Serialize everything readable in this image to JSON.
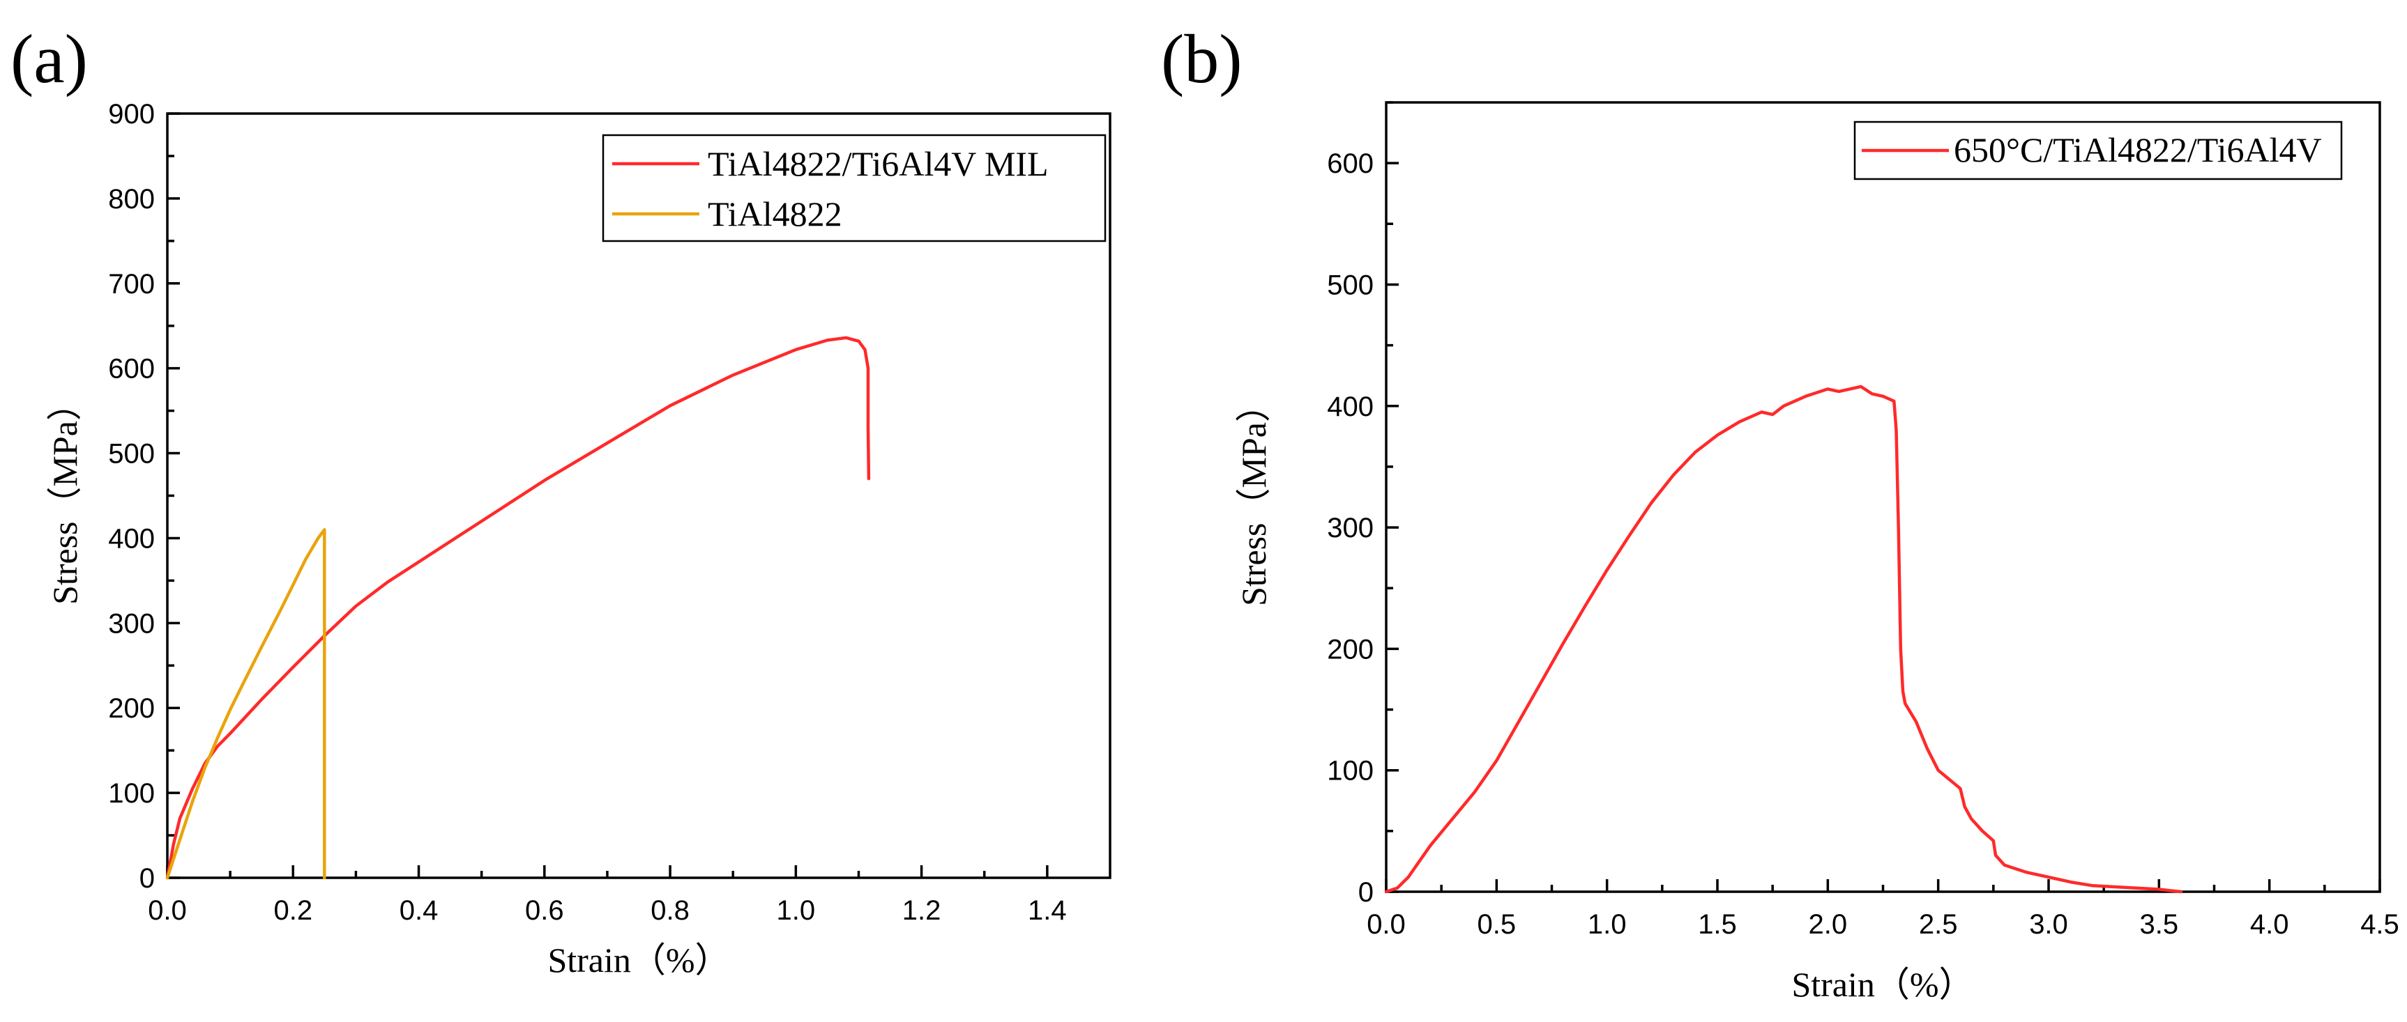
{
  "chart_data": [
    {
      "type": "line",
      "panel_label": "(a)",
      "xlabel": "Strain（%）",
      "ylabel": "Stress（MPa）",
      "xlim": [
        0.0,
        1.5
      ],
      "ylim": [
        0,
        900
      ],
      "x_ticks": [
        0.0,
        0.2,
        0.4,
        0.6,
        0.8,
        1.0,
        1.2,
        1.4
      ],
      "x_tick_labels": [
        "0.0",
        "0.2",
        "0.4",
        "0.6",
        "0.8",
        "1.0",
        "1.2",
        "1.4"
      ],
      "y_ticks": [
        0,
        100,
        200,
        300,
        400,
        500,
        600,
        700,
        800,
        900
      ],
      "y_tick_labels": [
        "0",
        "100",
        "200",
        "300",
        "400",
        "500",
        "600",
        "700",
        "800",
        "900"
      ],
      "legend_position": "top-right",
      "series": [
        {
          "name": "TiAl4822/Ti6Al4V MIL",
          "color": "#ff2a2a",
          "x": [
            0.0,
            0.01,
            0.02,
            0.04,
            0.06,
            0.08,
            0.1,
            0.15,
            0.2,
            0.25,
            0.3,
            0.35,
            0.4,
            0.5,
            0.6,
            0.7,
            0.8,
            0.9,
            1.0,
            1.05,
            1.08,
            1.1,
            1.11,
            1.115,
            1.115,
            1.116
          ],
          "y": [
            0,
            40,
            70,
            105,
            135,
            155,
            170,
            210,
            248,
            285,
            320,
            348,
            372,
            420,
            468,
            512,
            556,
            592,
            622,
            633,
            636,
            632,
            622,
            600,
            530,
            470
          ]
        },
        {
          "name": "TiAl4822",
          "color": "#e8a40c",
          "x": [
            0.0,
            0.02,
            0.04,
            0.06,
            0.08,
            0.1,
            0.12,
            0.15,
            0.18,
            0.2,
            0.22,
            0.24,
            0.25,
            0.25,
            0.25
          ],
          "y": [
            0,
            45,
            90,
            130,
            165,
            198,
            228,
            272,
            315,
            345,
            375,
            400,
            410,
            200,
            0
          ]
        }
      ]
    },
    {
      "type": "line",
      "panel_label": "(b)",
      "xlabel": "Strain（%）",
      "ylabel": "Stress（MPa）",
      "xlim": [
        0.0,
        4.5
      ],
      "ylim": [
        0,
        650
      ],
      "x_ticks": [
        0.0,
        0.5,
        1.0,
        1.5,
        2.0,
        2.5,
        3.0,
        3.5,
        4.0,
        4.5
      ],
      "x_tick_labels": [
        "0.0",
        "0.5",
        "1.0",
        "1.5",
        "2.0",
        "2.5",
        "3.0",
        "3.5",
        "4.0",
        "4.5"
      ],
      "y_ticks": [
        0,
        100,
        200,
        300,
        400,
        500,
        600
      ],
      "y_tick_labels": [
        "0",
        "100",
        "200",
        "300",
        "400",
        "500",
        "600"
      ],
      "legend_position": "top-right",
      "series": [
        {
          "name": "650°C/TiAl4822/Ti6Al4V",
          "color": "#ff2a2a",
          "x": [
            0.0,
            0.05,
            0.1,
            0.15,
            0.2,
            0.3,
            0.4,
            0.5,
            0.6,
            0.7,
            0.8,
            0.9,
            1.0,
            1.1,
            1.2,
            1.3,
            1.4,
            1.5,
            1.6,
            1.7,
            1.75,
            1.8,
            1.9,
            2.0,
            2.05,
            2.1,
            2.15,
            2.2,
            2.25,
            2.3,
            2.31,
            2.32,
            2.33,
            2.34,
            2.35,
            2.4,
            2.45,
            2.5,
            2.6,
            2.62,
            2.65,
            2.7,
            2.75,
            2.76,
            2.8,
            2.9,
            3.0,
            3.1,
            3.2,
            3.3,
            3.4,
            3.5,
            3.55,
            3.6
          ],
          "y": [
            0,
            3,
            12,
            25,
            38,
            60,
            82,
            108,
            140,
            172,
            204,
            235,
            265,
            293,
            320,
            343,
            362,
            376,
            387,
            395,
            393,
            400,
            408,
            414,
            412,
            414,
            416,
            410,
            408,
            404,
            380,
            300,
            200,
            165,
            155,
            140,
            118,
            100,
            85,
            70,
            60,
            50,
            42,
            30,
            22,
            16,
            12,
            8,
            5,
            4,
            3,
            2,
            1,
            0
          ]
        }
      ]
    }
  ]
}
